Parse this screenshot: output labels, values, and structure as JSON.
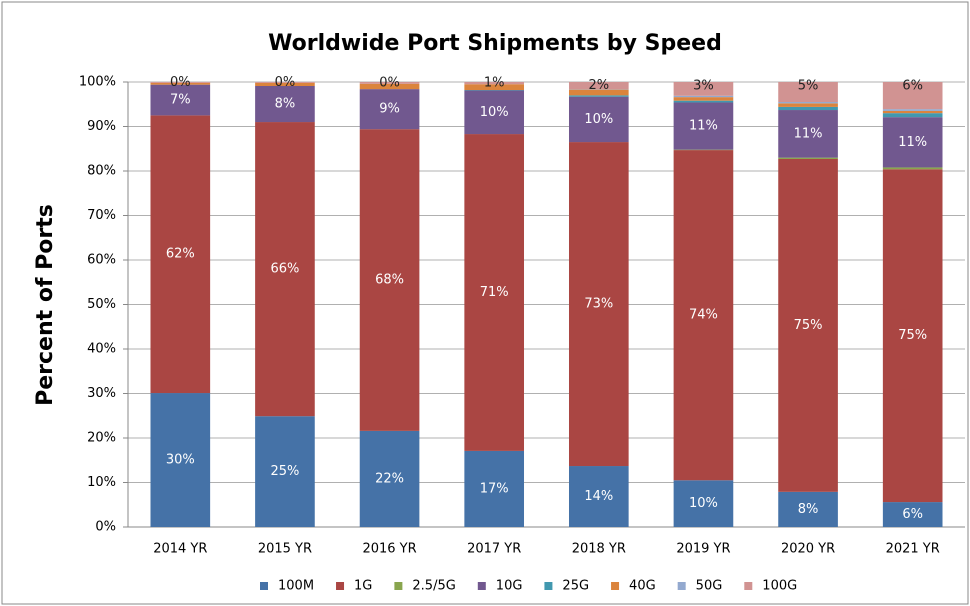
{
  "chart_data": {
    "type": "stacked_bar",
    "title": "Worldwide Port Shipments by Speed",
    "y_label": "Percent of Ports",
    "categories": [
      "2014 YR",
      "2015 YR",
      "2016 YR",
      "2017 YR",
      "2018 YR",
      "2019 YR",
      "2020 YR",
      "2021 YR"
    ],
    "series": [
      {
        "name": "100M",
        "color": "#4572a7",
        "values": [
          30.1,
          24.9,
          21.6,
          17.1,
          13.7,
          10.5,
          7.9,
          5.6
        ],
        "value_labels": [
          "30%",
          "25%",
          "22%",
          "17%",
          "14%",
          "10%",
          "8%",
          "6%"
        ]
      },
      {
        "name": "1G",
        "color": "#aa4643",
        "values": [
          62.4,
          66.1,
          67.8,
          71.2,
          72.8,
          74.2,
          74.8,
          74.8
        ],
        "value_labels": [
          "62%",
          "66%",
          "68%",
          "71%",
          "73%",
          "74%",
          "75%",
          "75%"
        ]
      },
      {
        "name": "2.5/5G",
        "color": "#89a54e",
        "values": [
          0,
          0,
          0,
          0,
          0,
          0.1,
          0.3,
          0.4
        ]
      },
      {
        "name": "10G",
        "color": "#71588f",
        "values": [
          6.9,
          8.1,
          9.0,
          9.8,
          10.2,
          10.6,
          10.7,
          11.3
        ],
        "value_labels": [
          "7%",
          "8%",
          "9%",
          "10%",
          "10%",
          "11%",
          "11%",
          "11%"
        ]
      },
      {
        "name": "25G",
        "color": "#4198af",
        "values": [
          0,
          0,
          0,
          0.1,
          0.3,
          0.4,
          0.7,
          0.9
        ]
      },
      {
        "name": "40G",
        "color": "#db843d",
        "values": [
          0.4,
          0.7,
          1.2,
          1.3,
          1.3,
          0.8,
          0.8,
          0.5
        ]
      },
      {
        "name": "50G",
        "color": "#93a9cf",
        "values": [
          0,
          0,
          0,
          0,
          0.1,
          0.3,
          0.3,
          0.4
        ]
      },
      {
        "name": "100G",
        "color": "#d19392",
        "values": [
          0.2,
          0.2,
          0.4,
          0.5,
          1.6,
          3.1,
          4.5,
          6.1
        ],
        "value_labels": [
          "0%",
          "0%",
          "0%",
          "1%",
          "2%",
          "3%",
          "5%",
          "6%"
        ]
      }
    ],
    "ylim": [
      0,
      100
    ],
    "yticks": [
      {
        "value": 0,
        "label": "0%"
      },
      {
        "value": 10,
        "label": "10%"
      },
      {
        "value": 20,
        "label": "20%"
      },
      {
        "value": 30,
        "label": "30%"
      },
      {
        "value": 40,
        "label": "40%"
      },
      {
        "value": 50,
        "label": "50%"
      },
      {
        "value": 60,
        "label": "60%"
      },
      {
        "value": 70,
        "label": "70%"
      },
      {
        "value": 80,
        "label": "80%"
      },
      {
        "value": 90,
        "label": "90%"
      },
      {
        "value": 100,
        "label": "100%"
      }
    ],
    "grid": true,
    "legend": "bottom"
  }
}
